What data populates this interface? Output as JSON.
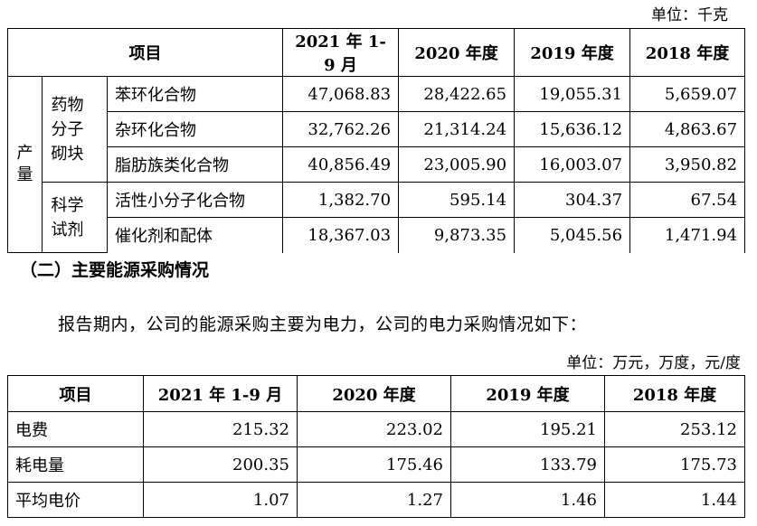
{
  "table1": {
    "unit": "单位：千克",
    "header": {
      "item": "项目",
      "c1": "2021 年 1-9 月",
      "c2": "2020 年度",
      "c3": "2019 年度",
      "c4": "2018 年度"
    },
    "group_label": "产量",
    "sub1_label": "药物分子砌块",
    "sub2_label": "科学试剂",
    "rows": [
      {
        "name": "苯环化合物",
        "v1": "47,068.83",
        "v2": "28,422.65",
        "v3": "19,055.31",
        "v4": "5,659.07"
      },
      {
        "name": "杂环化合物",
        "v1": "32,762.26",
        "v2": "21,314.24",
        "v3": "15,636.12",
        "v4": "4,863.67"
      },
      {
        "name": "脂肪族类化合物",
        "v1": "40,856.49",
        "v2": "23,005.90",
        "v3": "16,003.07",
        "v4": "3,950.82"
      },
      {
        "name": "活性小分子化合物",
        "v1": "1,382.70",
        "v2": "595.14",
        "v3": "304.37",
        "v4": "67.54"
      },
      {
        "name": "催化剂和配体",
        "v1": "18,367.03",
        "v2": "9,873.35",
        "v3": "5,045.56",
        "v4": "1,471.94"
      }
    ]
  },
  "section_heading": "（二）主要能源采购情况",
  "paragraph": "报告期内，公司的能源采购主要为电力，公司的电力采购情况如下：",
  "table2": {
    "unit": "单位：万元，万度，元/度",
    "header": {
      "item": "项目",
      "c1": "2021 年 1-9 月",
      "c2": "2020 年度",
      "c3": "2019 年度",
      "c4": "2018 年度"
    },
    "rows": [
      {
        "name": "电费",
        "v1": "215.32",
        "v2": "223.02",
        "v3": "195.21",
        "v4": "253.12"
      },
      {
        "name": "耗电量",
        "v1": "200.35",
        "v2": "175.46",
        "v3": "133.79",
        "v4": "175.73"
      },
      {
        "name": "平均电价",
        "v1": "1.07",
        "v2": "1.27",
        "v3": "1.46",
        "v4": "1.44"
      }
    ]
  }
}
